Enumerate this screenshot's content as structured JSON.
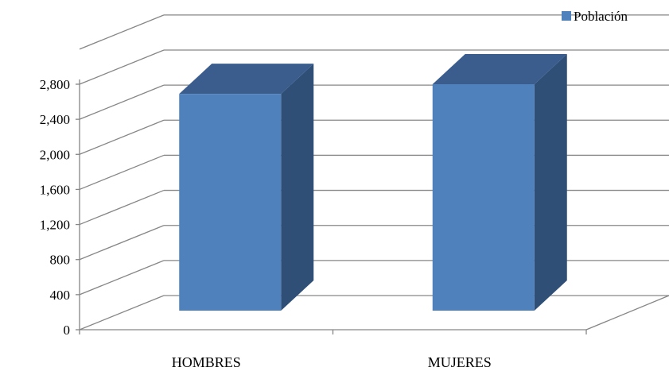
{
  "chart_data": {
    "type": "bar",
    "style": "3d-column",
    "categories": [
      "HOMBRES",
      "MUJERES"
    ],
    "series": [
      {
        "name": "Población",
        "values": [
          2690,
          2800
        ],
        "color": "#4F81BD"
      }
    ],
    "y_ticks": [
      "0",
      "400",
      "800",
      "1,200",
      "1,600",
      "2,000",
      "2,400",
      "2,800"
    ],
    "ylim": [
      0,
      2800
    ],
    "grid": true,
    "legend_position": "top-right",
    "title": "",
    "xlabel": "",
    "ylabel": ""
  }
}
